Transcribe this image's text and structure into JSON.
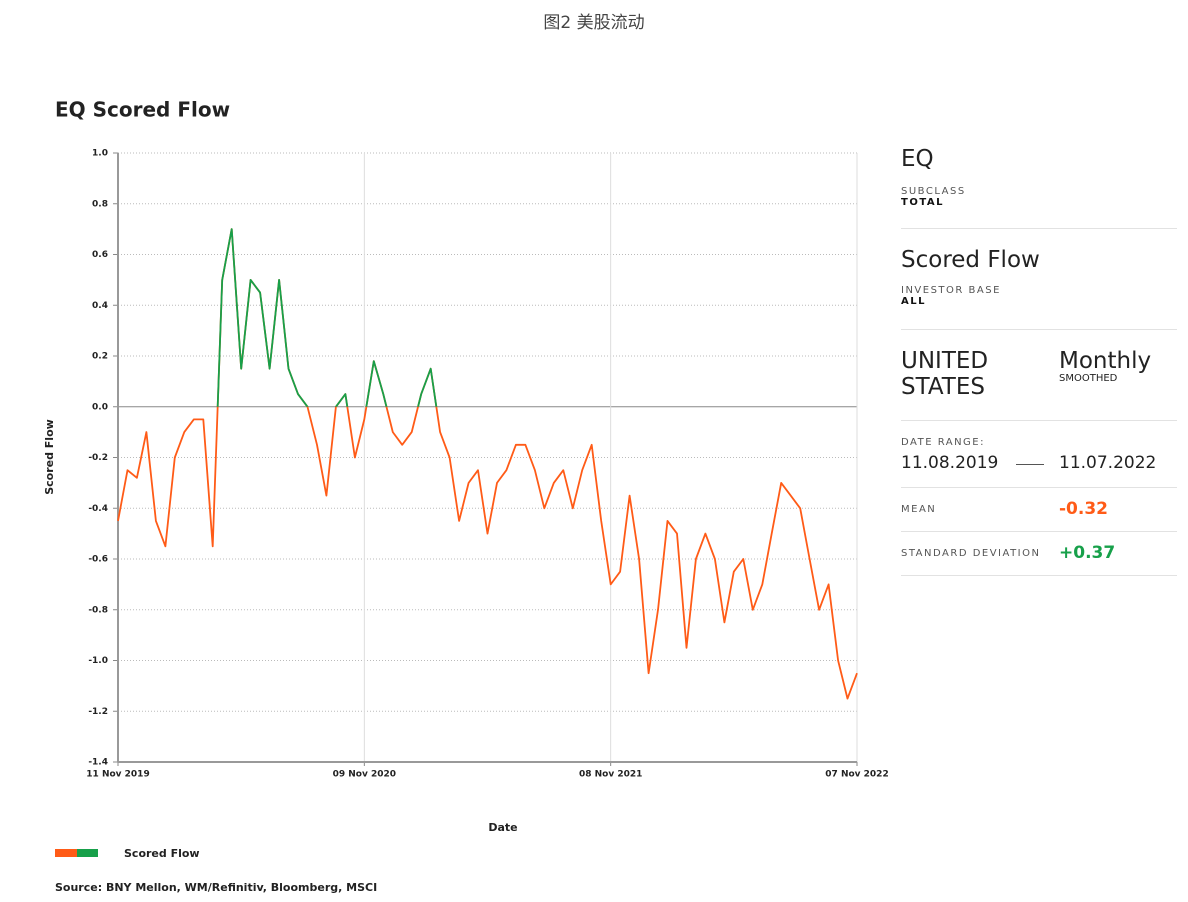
{
  "figure_caption": "图2 美股流动",
  "chart_data": {
    "type": "line",
    "title": "EQ Scored Flow",
    "xlabel": "Date",
    "ylabel": "Scored Flow",
    "x": [
      "2019-11-11",
      "2019-11-25",
      "2019-12-09",
      "2019-12-23",
      "2020-01-06",
      "2020-01-20",
      "2020-02-03",
      "2020-02-17",
      "2020-03-02",
      "2020-03-16",
      "2020-03-30",
      "2020-04-13",
      "2020-04-27",
      "2020-05-11",
      "2020-05-25",
      "2020-06-08",
      "2020-06-22",
      "2020-07-06",
      "2020-07-20",
      "2020-08-03",
      "2020-08-17",
      "2020-08-31",
      "2020-09-14",
      "2020-09-28",
      "2020-10-12",
      "2020-10-26",
      "2020-11-09",
      "2020-11-23",
      "2020-12-07",
      "2020-12-21",
      "2021-01-04",
      "2021-01-18",
      "2021-02-01",
      "2021-02-15",
      "2021-03-01",
      "2021-03-15",
      "2021-03-29",
      "2021-04-12",
      "2021-04-26",
      "2021-05-10",
      "2021-05-24",
      "2021-06-07",
      "2021-06-21",
      "2021-07-05",
      "2021-07-19",
      "2021-08-02",
      "2021-08-16",
      "2021-08-30",
      "2021-09-13",
      "2021-09-27",
      "2021-10-11",
      "2021-10-25",
      "2021-11-08",
      "2021-11-22",
      "2021-12-06",
      "2021-12-20",
      "2022-01-03",
      "2022-01-17",
      "2022-01-31",
      "2022-02-14",
      "2022-02-28",
      "2022-03-14",
      "2022-03-28",
      "2022-04-11",
      "2022-04-25",
      "2022-05-09",
      "2022-05-23",
      "2022-06-06",
      "2022-06-20",
      "2022-07-04",
      "2022-07-18",
      "2022-08-01",
      "2022-08-15",
      "2022-08-29",
      "2022-09-12",
      "2022-09-26",
      "2022-10-10",
      "2022-10-24",
      "2022-11-07"
    ],
    "series": [
      {
        "name": "Scored Flow",
        "color": "#ff5b17",
        "color_positive": "#17a04a",
        "values": [
          -0.45,
          -0.25,
          -0.28,
          -0.1,
          -0.45,
          -0.55,
          -0.2,
          -0.1,
          -0.05,
          -0.05,
          -0.55,
          0.5,
          0.7,
          0.15,
          0.5,
          0.45,
          0.15,
          0.5,
          0.15,
          0.05,
          0.0,
          -0.15,
          -0.35,
          0.0,
          0.05,
          -0.2,
          -0.05,
          0.18,
          0.05,
          -0.1,
          -0.15,
          -0.1,
          0.05,
          0.15,
          -0.1,
          -0.2,
          -0.45,
          -0.3,
          -0.25,
          -0.5,
          -0.3,
          -0.25,
          -0.15,
          -0.15,
          -0.25,
          -0.4,
          -0.3,
          -0.25,
          -0.4,
          -0.25,
          -0.15,
          -0.45,
          -0.7,
          -0.65,
          -0.35,
          -0.6,
          -1.05,
          -0.8,
          -0.45,
          -0.5,
          -0.95,
          -0.6,
          -0.5,
          -0.6,
          -0.85,
          -0.65,
          -0.6,
          -0.8,
          -0.7,
          -0.5,
          -0.3,
          -0.35,
          -0.4,
          -0.6,
          -0.8,
          -0.7,
          -1.0,
          -1.15,
          -1.05
        ]
      }
    ],
    "xlim": [
      "2019-11-11",
      "2022-11-07"
    ],
    "xticks": [
      {
        "value": "2019-11-11",
        "label": "11 Nov 2019"
      },
      {
        "value": "2020-11-09",
        "label": "09 Nov 2020"
      },
      {
        "value": "2021-11-08",
        "label": "08 Nov 2021"
      },
      {
        "value": "2022-11-07",
        "label": "07 Nov 2022"
      }
    ],
    "ylim": [
      -1.4,
      1.0
    ],
    "yticks": [
      {
        "value": -1.4,
        "label": "-1.4"
      },
      -1.2,
      {
        "value": -1.0,
        "label": "-1.0"
      },
      -0.8,
      -0.6,
      -0.4,
      -0.2,
      {
        "value": 0,
        "label": "0.0"
      },
      0.2,
      0.4,
      0.6,
      0.8,
      {
        "value": 1.0,
        "label": "1.0"
      }
    ],
    "grid": true,
    "legend": "bottom-left",
    "source": "Source: BNY Mellon, WM/Refinitiv, Bloomberg, MSCI"
  },
  "panel": {
    "asset": "EQ",
    "subclass_label": "SUBCLASS",
    "subclass": "TOTAL",
    "metric": "Scored Flow",
    "investor_base_label": "INVESTOR BASE",
    "investor_base": "ALL",
    "region": "UNITED STATES",
    "frequency": "Monthly",
    "smoothing": "SMOOTHED",
    "date_range_label": "DATE RANGE:",
    "date_start": "11.08.2019",
    "date_end": "11.07.2022",
    "mean_label": "MEAN",
    "mean": "-0.32",
    "sd_label": "STANDARD DEVIATION",
    "sd": "+0.37"
  }
}
